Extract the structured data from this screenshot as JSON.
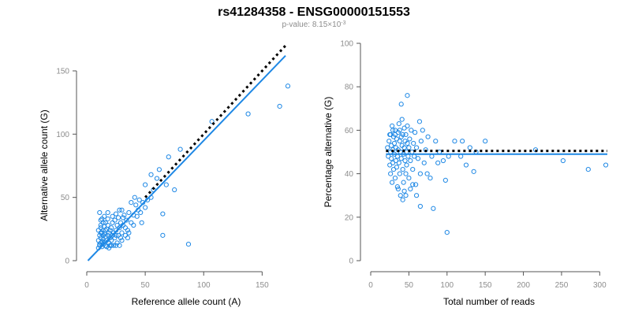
{
  "figure": {
    "title": "rs41284358 - ENSG00000151553",
    "subtitle_prefix": "p-value: 8.15×10",
    "subtitle_exponent": "-3"
  },
  "colors": {
    "points": "#1e88e5",
    "fit_line": "#1e88e5",
    "reference_line": "#000000"
  },
  "chart_data": [
    {
      "type": "scatter",
      "xlabel": "Reference allele count (A)",
      "ylabel": "Alternative allele count (G)",
      "xlim": [
        0,
        170
      ],
      "ylim": [
        0,
        160
      ],
      "xticks": [
        0,
        50,
        100,
        150
      ],
      "yticks": [
        0,
        50,
        100,
        150
      ],
      "fit_line": [
        [
          1,
          0
        ],
        [
          170,
          162
        ]
      ],
      "reference_line": [
        [
          50,
          50
        ],
        [
          170,
          170
        ]
      ],
      "points": [
        [
          10,
          10
        ],
        [
          11,
          12
        ],
        [
          12,
          14
        ],
        [
          10,
          16
        ],
        [
          13,
          11
        ],
        [
          12,
          18
        ],
        [
          14,
          13
        ],
        [
          11,
          20
        ],
        [
          13,
          22
        ],
        [
          15,
          15
        ],
        [
          10,
          24
        ],
        [
          12,
          26
        ],
        [
          14,
          17
        ],
        [
          16,
          19
        ],
        [
          11,
          13
        ],
        [
          13,
          15
        ],
        [
          15,
          21
        ],
        [
          12,
          28
        ],
        [
          14,
          24
        ],
        [
          16,
          12
        ],
        [
          17,
          16
        ],
        [
          18,
          20
        ],
        [
          19,
          22
        ],
        [
          20,
          18
        ],
        [
          15,
          27
        ],
        [
          17,
          25
        ],
        [
          19,
          14
        ],
        [
          21,
          16
        ],
        [
          18,
          28
        ],
        [
          20,
          24
        ],
        [
          22,
          20
        ],
        [
          21,
          26
        ],
        [
          23,
          22
        ],
        [
          24,
          18
        ],
        [
          22,
          30
        ],
        [
          25,
          24
        ],
        [
          26,
          28
        ],
        [
          24,
          32
        ],
        [
          27,
          20
        ],
        [
          28,
          26
        ],
        [
          29,
          30
        ],
        [
          30,
          22
        ],
        [
          27,
          34
        ],
        [
          31,
          28
        ],
        [
          32,
          36
        ],
        [
          33,
          26
        ],
        [
          30,
          40
        ],
        [
          34,
          32
        ],
        [
          35,
          24
        ],
        [
          36,
          38
        ],
        [
          26,
          14
        ],
        [
          28,
          12
        ],
        [
          30,
          16
        ],
        [
          20,
          12
        ],
        [
          23,
          12
        ],
        [
          16,
          30
        ],
        [
          18,
          33
        ],
        [
          22,
          35
        ],
        [
          25,
          37
        ],
        [
          28,
          40
        ],
        [
          12,
          32
        ],
        [
          14,
          30
        ],
        [
          11,
          38
        ],
        [
          13,
          33
        ],
        [
          17,
          11
        ],
        [
          19,
          10
        ],
        [
          21,
          12
        ],
        [
          25,
          12
        ],
        [
          33,
          20
        ],
        [
          35,
          18
        ],
        [
          38,
          30
        ],
        [
          40,
          36
        ],
        [
          42,
          44
        ],
        [
          44,
          40
        ],
        [
          45,
          48
        ],
        [
          46,
          38
        ],
        [
          48,
          46
        ],
        [
          50,
          42
        ],
        [
          52,
          48
        ],
        [
          55,
          50
        ],
        [
          40,
          28
        ],
        [
          43,
          35
        ],
        [
          47,
          30
        ],
        [
          38,
          46
        ],
        [
          41,
          50
        ],
        [
          50,
          60
        ],
        [
          55,
          68
        ],
        [
          57,
          56
        ],
        [
          60,
          65
        ],
        [
          62,
          72
        ],
        [
          65,
          20
        ],
        [
          65,
          37
        ],
        [
          68,
          60
        ],
        [
          70,
          82
        ],
        [
          75,
          56
        ],
        [
          80,
          88
        ],
        [
          87,
          13
        ],
        [
          107,
          110
        ],
        [
          138,
          116
        ],
        [
          165,
          122
        ],
        [
          172,
          138
        ],
        [
          15,
          35
        ],
        [
          18,
          38
        ],
        [
          25,
          20
        ],
        [
          29,
          18
        ],
        [
          31,
          34
        ],
        [
          36,
          22
        ],
        [
          12,
          22
        ],
        [
          14,
          20
        ],
        [
          16,
          24
        ]
      ]
    },
    {
      "type": "scatter",
      "xlabel": "Total number of reads",
      "ylabel": "Percentage alternative (G)",
      "xlim": [
        0,
        310
      ],
      "ylim": [
        0,
        100
      ],
      "xticks": [
        0,
        50,
        100,
        150,
        200,
        250,
        300
      ],
      "yticks": [
        0,
        20,
        40,
        60,
        80,
        100
      ],
      "fit_line": [
        [
          20,
          49
        ],
        [
          310,
          49
        ]
      ],
      "reference_line": [
        [
          20,
          50.5
        ],
        [
          310,
          50.5
        ]
      ],
      "points": [
        [
          22,
          52
        ],
        [
          23,
          48
        ],
        [
          24,
          55
        ],
        [
          25,
          44
        ],
        [
          25,
          58
        ],
        [
          26,
          50
        ],
        [
          26,
          40
        ],
        [
          27,
          53
        ],
        [
          27,
          47
        ],
        [
          28,
          62
        ],
        [
          28,
          36
        ],
        [
          29,
          51
        ],
        [
          29,
          45
        ],
        [
          30,
          57
        ],
        [
          30,
          42
        ],
        [
          31,
          49
        ],
        [
          31,
          54
        ],
        [
          32,
          38
        ],
        [
          32,
          60
        ],
        [
          33,
          46
        ],
        [
          33,
          52
        ],
        [
          34,
          43
        ],
        [
          34,
          56
        ],
        [
          35,
          48
        ],
        [
          35,
          34
        ],
        [
          36,
          59
        ],
        [
          36,
          51
        ],
        [
          37,
          45
        ],
        [
          37,
          63
        ],
        [
          38,
          40
        ],
        [
          38,
          55
        ],
        [
          39,
          50
        ],
        [
          39,
          30
        ],
        [
          40,
          57
        ],
        [
          40,
          47
        ],
        [
          41,
          53
        ],
        [
          41,
          65
        ],
        [
          42,
          42
        ],
        [
          42,
          58
        ],
        [
          43,
          49
        ],
        [
          43,
          36
        ],
        [
          44,
          61
        ],
        [
          44,
          52
        ],
        [
          45,
          46
        ],
        [
          45,
          55
        ],
        [
          46,
          40
        ],
        [
          46,
          58
        ],
        [
          47,
          50
        ],
        [
          47,
          44
        ],
        [
          48,
          54
        ],
        [
          48,
          62
        ],
        [
          49,
          48
        ],
        [
          50,
          52
        ],
        [
          50,
          38
        ],
        [
          51,
          56
        ],
        [
          52,
          46
        ],
        [
          53,
          60
        ],
        [
          54,
          50
        ],
        [
          55,
          42
        ],
        [
          56,
          54
        ],
        [
          57,
          48
        ],
        [
          58,
          59
        ],
        [
          59,
          35
        ],
        [
          60,
          52
        ],
        [
          62,
          47
        ],
        [
          64,
          64
        ],
        [
          65,
          25
        ],
        [
          66,
          55
        ],
        [
          68,
          60
        ],
        [
          70,
          45
        ],
        [
          72,
          51
        ],
        [
          74,
          40
        ],
        [
          75,
          57
        ],
        [
          78,
          38
        ],
        [
          80,
          48
        ],
        [
          82,
          24
        ],
        [
          85,
          55
        ],
        [
          88,
          45
        ],
        [
          90,
          50
        ],
        [
          95,
          46
        ],
        [
          98,
          37
        ],
        [
          100,
          13
        ],
        [
          102,
          48
        ],
        [
          110,
          55
        ],
        [
          118,
          48
        ],
        [
          120,
          55
        ],
        [
          125,
          44
        ],
        [
          130,
          52
        ],
        [
          135,
          41
        ],
        [
          138,
          50
        ],
        [
          150,
          55
        ],
        [
          40,
          72
        ],
        [
          48,
          76
        ],
        [
          42,
          28
        ],
        [
          44,
          32
        ],
        [
          36,
          33
        ],
        [
          46,
          30
        ],
        [
          52,
          33
        ],
        [
          26,
          58
        ],
        [
          29,
          60
        ],
        [
          32,
          58
        ],
        [
          38,
          60
        ],
        [
          216,
          51
        ],
        [
          252,
          46
        ],
        [
          285,
          42
        ],
        [
          308,
          44
        ],
        [
          55,
          35
        ],
        [
          60,
          30
        ],
        [
          65,
          40
        ]
      ]
    }
  ]
}
